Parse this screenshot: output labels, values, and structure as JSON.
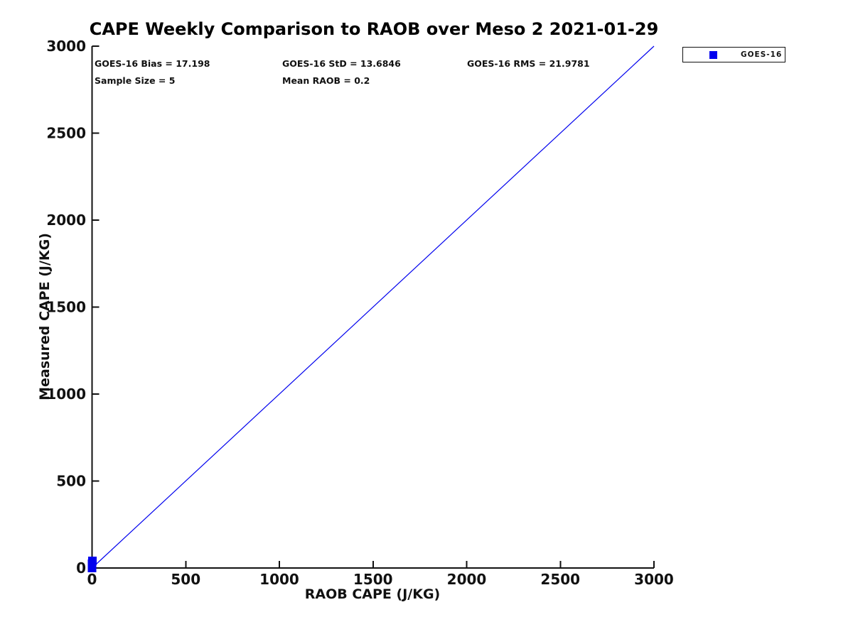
{
  "chart": {
    "title": "CAPE Weekly Comparison to RAOB over Meso 2 2021-01-29",
    "stats": {
      "bias": "GOES-16 Bias = 17.198",
      "std": "GOES-16 StD = 13.6846",
      "rms": "GOES-16 RMS = 21.9781",
      "sample_size": "Sample Size = 5",
      "mean_raob": "Mean RAOB = 0.2"
    },
    "legend": {
      "label": "GOES-16",
      "marker": "square",
      "marker_color": "#0000ee"
    },
    "colors": {
      "series_blue": "#0000ee",
      "axis": "#111111",
      "background": "#ffffff"
    }
  },
  "chart_data": {
    "type": "scatter",
    "title": "CAPE Weekly Comparison to RAOB over Meso 2 2021-01-29",
    "xlabel": "RAOB CAPE (J/KG)",
    "ylabel": "Measured CAPE (J/KG)",
    "xlim": [
      0,
      3000
    ],
    "ylim": [
      0,
      3000
    ],
    "xticks": [
      0,
      500,
      1000,
      1500,
      2000,
      2500,
      3000
    ],
    "yticks": [
      0,
      500,
      1000,
      1500,
      2000,
      2500,
      3000
    ],
    "grid": false,
    "legend_position": "top-right-outside",
    "series": [
      {
        "name": "GOES-16",
        "type": "scatter",
        "marker": "square",
        "marker_size": 12,
        "color": "#0000ee",
        "x": [
          0,
          0,
          0,
          0,
          1
        ],
        "y": [
          0,
          7,
          15,
          24,
          40
        ],
        "note": "five overlapping square markers clustered at the origin; values estimated from pixels, consistent with Bias=17.198, StD=13.6846, RMS=21.9781, Mean RAOB=0.2"
      },
      {
        "name": "1:1 reference line",
        "type": "line",
        "color": "#0000ee",
        "width": 1.2,
        "x": [
          0,
          3000
        ],
        "y": [
          0,
          3000
        ]
      }
    ],
    "annotations": [
      "GOES-16 Bias = 17.198",
      "GOES-16 StD = 13.6846",
      "GOES-16 RMS = 21.9781",
      "Sample Size = 5",
      "Mean RAOB = 0.2"
    ]
  }
}
